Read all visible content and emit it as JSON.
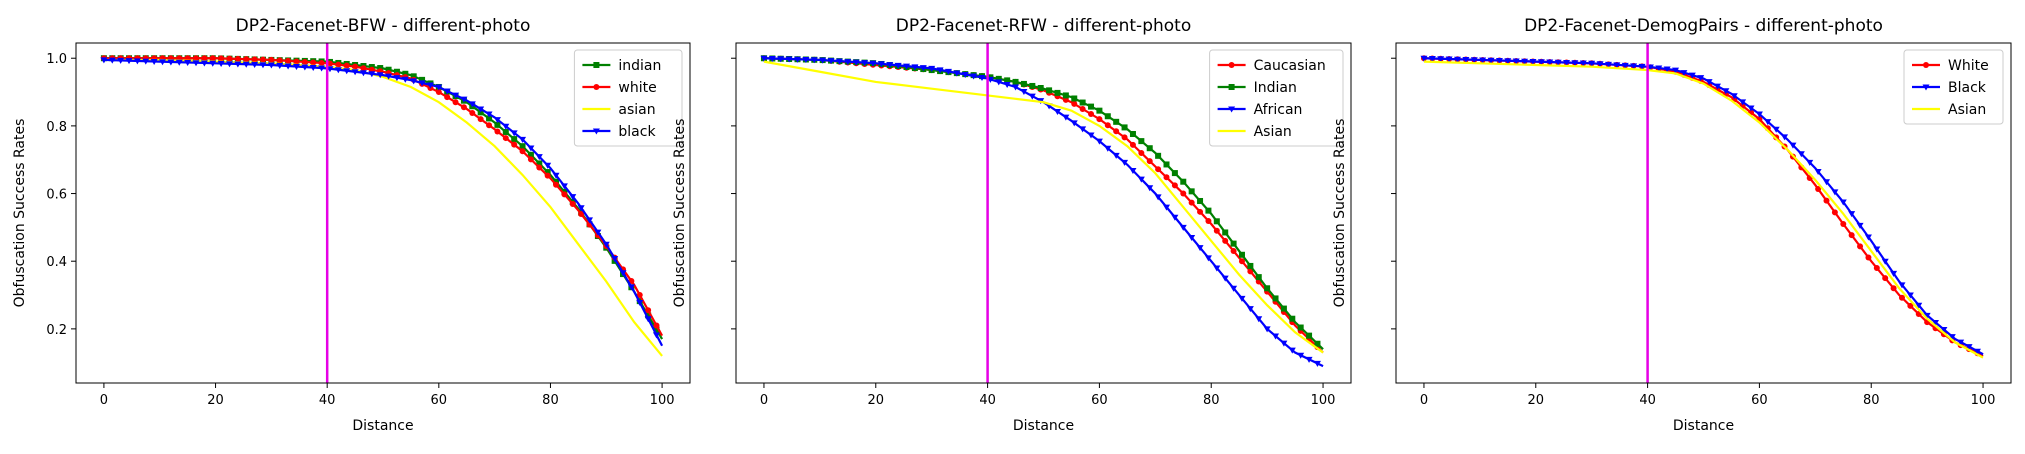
{
  "chart_data": [
    {
      "type": "line",
      "title": "DP2-Facenet-BFW - different-photo",
      "xlabel": "Distance",
      "ylabel": "Obfuscation Success Rates",
      "xlim": [
        -5,
        105
      ],
      "ylim": [
        0.04,
        1.045
      ],
      "xticks": [
        0,
        20,
        40,
        60,
        80,
        100
      ],
      "xtick_labels": [
        "0",
        "20",
        "40",
        "60",
        "80",
        "100"
      ],
      "yticks": [
        0.2,
        0.4,
        0.6,
        0.8,
        1.0
      ],
      "ytick_labels": [
        "0.2",
        "0.4",
        "0.6",
        "0.8",
        "1.0"
      ],
      "show_yticklabels": true,
      "legend_position": "top-right",
      "threshold_line": {
        "x": 40,
        "color": "#e600e6"
      },
      "x": [
        0,
        10,
        20,
        30,
        40,
        45,
        50,
        55,
        60,
        65,
        70,
        75,
        80,
        85,
        90,
        95,
        100
      ],
      "series": [
        {
          "name": "indian",
          "color": "#008000",
          "marker": "square",
          "values": [
            1.0,
            1.0,
            1.0,
            0.995,
            0.99,
            0.98,
            0.97,
            0.95,
            0.915,
            0.87,
            0.81,
            0.74,
            0.655,
            0.555,
            0.44,
            0.31,
            0.17
          ]
        },
        {
          "name": "white",
          "color": "#ff0000",
          "marker": "circle",
          "values": [
            1.0,
            1.0,
            1.0,
            0.995,
            0.985,
            0.975,
            0.96,
            0.94,
            0.9,
            0.85,
            0.79,
            0.725,
            0.645,
            0.55,
            0.445,
            0.33,
            0.18
          ]
        },
        {
          "name": "asian",
          "color": "#ffff00",
          "marker": "none",
          "values": [
            0.995,
            0.995,
            0.99,
            0.985,
            0.975,
            0.965,
            0.945,
            0.915,
            0.87,
            0.81,
            0.74,
            0.655,
            0.56,
            0.45,
            0.34,
            0.22,
            0.12
          ]
        },
        {
          "name": "black",
          "color": "#0000ff",
          "marker": "triangle",
          "values": [
            0.995,
            0.99,
            0.985,
            0.98,
            0.97,
            0.96,
            0.95,
            0.935,
            0.915,
            0.875,
            0.825,
            0.76,
            0.675,
            0.57,
            0.45,
            0.31,
            0.15
          ]
        }
      ]
    },
    {
      "type": "line",
      "title": "DP2-Facenet-RFW - different-photo",
      "xlabel": "Distance",
      "ylabel": "Obfuscation Success Rates",
      "xlim": [
        -5,
        105
      ],
      "ylim": [
        0.04,
        1.045
      ],
      "xticks": [
        0,
        20,
        40,
        60,
        80,
        100
      ],
      "xtick_labels": [
        "0",
        "20",
        "40",
        "60",
        "80",
        "100"
      ],
      "yticks": [
        0.2,
        0.4,
        0.6,
        0.8,
        1.0
      ],
      "ytick_labels": [
        "",
        "",
        "",
        "",
        ""
      ],
      "show_yticklabels": false,
      "legend_position": "top-right",
      "threshold_line": {
        "x": 40,
        "color": "#e600e6"
      },
      "x": [
        0,
        10,
        20,
        30,
        40,
        45,
        50,
        55,
        60,
        65,
        70,
        75,
        80,
        85,
        90,
        95,
        100
      ],
      "series": [
        {
          "name": "Caucasian",
          "color": "#ff0000",
          "marker": "circle",
          "values": [
            1.0,
            0.995,
            0.98,
            0.965,
            0.945,
            0.93,
            0.905,
            0.87,
            0.82,
            0.76,
            0.68,
            0.6,
            0.51,
            0.41,
            0.31,
            0.21,
            0.13
          ]
        },
        {
          "name": "Indian",
          "color": "#008000",
          "marker": "square",
          "values": [
            1.0,
            0.995,
            0.985,
            0.965,
            0.945,
            0.93,
            0.91,
            0.885,
            0.845,
            0.79,
            0.72,
            0.635,
            0.54,
            0.43,
            0.32,
            0.22,
            0.14
          ]
        },
        {
          "name": "African",
          "color": "#0000ff",
          "marker": "triangle",
          "values": [
            1.0,
            0.995,
            0.985,
            0.97,
            0.94,
            0.915,
            0.87,
            0.815,
            0.755,
            0.685,
            0.6,
            0.5,
            0.4,
            0.3,
            0.2,
            0.13,
            0.09
          ]
        },
        {
          "name": "Asian",
          "color": "#ffff00",
          "marker": "none",
          "values": [
            0.99,
            0.96,
            0.93,
            0.91,
            0.89,
            0.88,
            0.87,
            0.845,
            0.8,
            0.74,
            0.66,
            0.56,
            0.46,
            0.36,
            0.27,
            0.19,
            0.13
          ]
        }
      ]
    },
    {
      "type": "line",
      "title": "DP2-Facenet-DemogPairs - different-photo",
      "xlabel": "Distance",
      "ylabel": "Obfuscation Success Rates",
      "xlim": [
        -5,
        105
      ],
      "ylim": [
        0.04,
        1.045
      ],
      "xticks": [
        0,
        20,
        40,
        60,
        80,
        100
      ],
      "xtick_labels": [
        "0",
        "20",
        "40",
        "60",
        "80",
        "100"
      ],
      "yticks": [
        0.2,
        0.4,
        0.6,
        0.8,
        1.0
      ],
      "ytick_labels": [
        "",
        "",
        "",
        "",
        ""
      ],
      "show_yticklabels": false,
      "legend_position": "top-right",
      "threshold_line": {
        "x": 40,
        "color": "#e600e6"
      },
      "x": [
        0,
        10,
        20,
        30,
        40,
        45,
        50,
        55,
        60,
        65,
        70,
        75,
        80,
        85,
        90,
        95,
        100
      ],
      "series": [
        {
          "name": "White",
          "color": "#ff0000",
          "marker": "circle",
          "values": [
            1.0,
            0.995,
            0.99,
            0.985,
            0.975,
            0.96,
            0.93,
            0.885,
            0.82,
            0.73,
            0.625,
            0.51,
            0.4,
            0.3,
            0.22,
            0.16,
            0.12
          ]
        },
        {
          "name": "Black",
          "color": "#0000ff",
          "marker": "triangle",
          "values": [
            1.0,
            0.995,
            0.99,
            0.985,
            0.975,
            0.965,
            0.94,
            0.895,
            0.835,
            0.76,
            0.675,
            0.575,
            0.46,
            0.34,
            0.24,
            0.17,
            0.125
          ]
        },
        {
          "name": "Asian",
          "color": "#ffff00",
          "marker": "none",
          "values": [
            0.99,
            0.985,
            0.98,
            0.975,
            0.965,
            0.955,
            0.925,
            0.875,
            0.81,
            0.73,
            0.64,
            0.54,
            0.43,
            0.32,
            0.23,
            0.16,
            0.115
          ]
        }
      ]
    }
  ]
}
